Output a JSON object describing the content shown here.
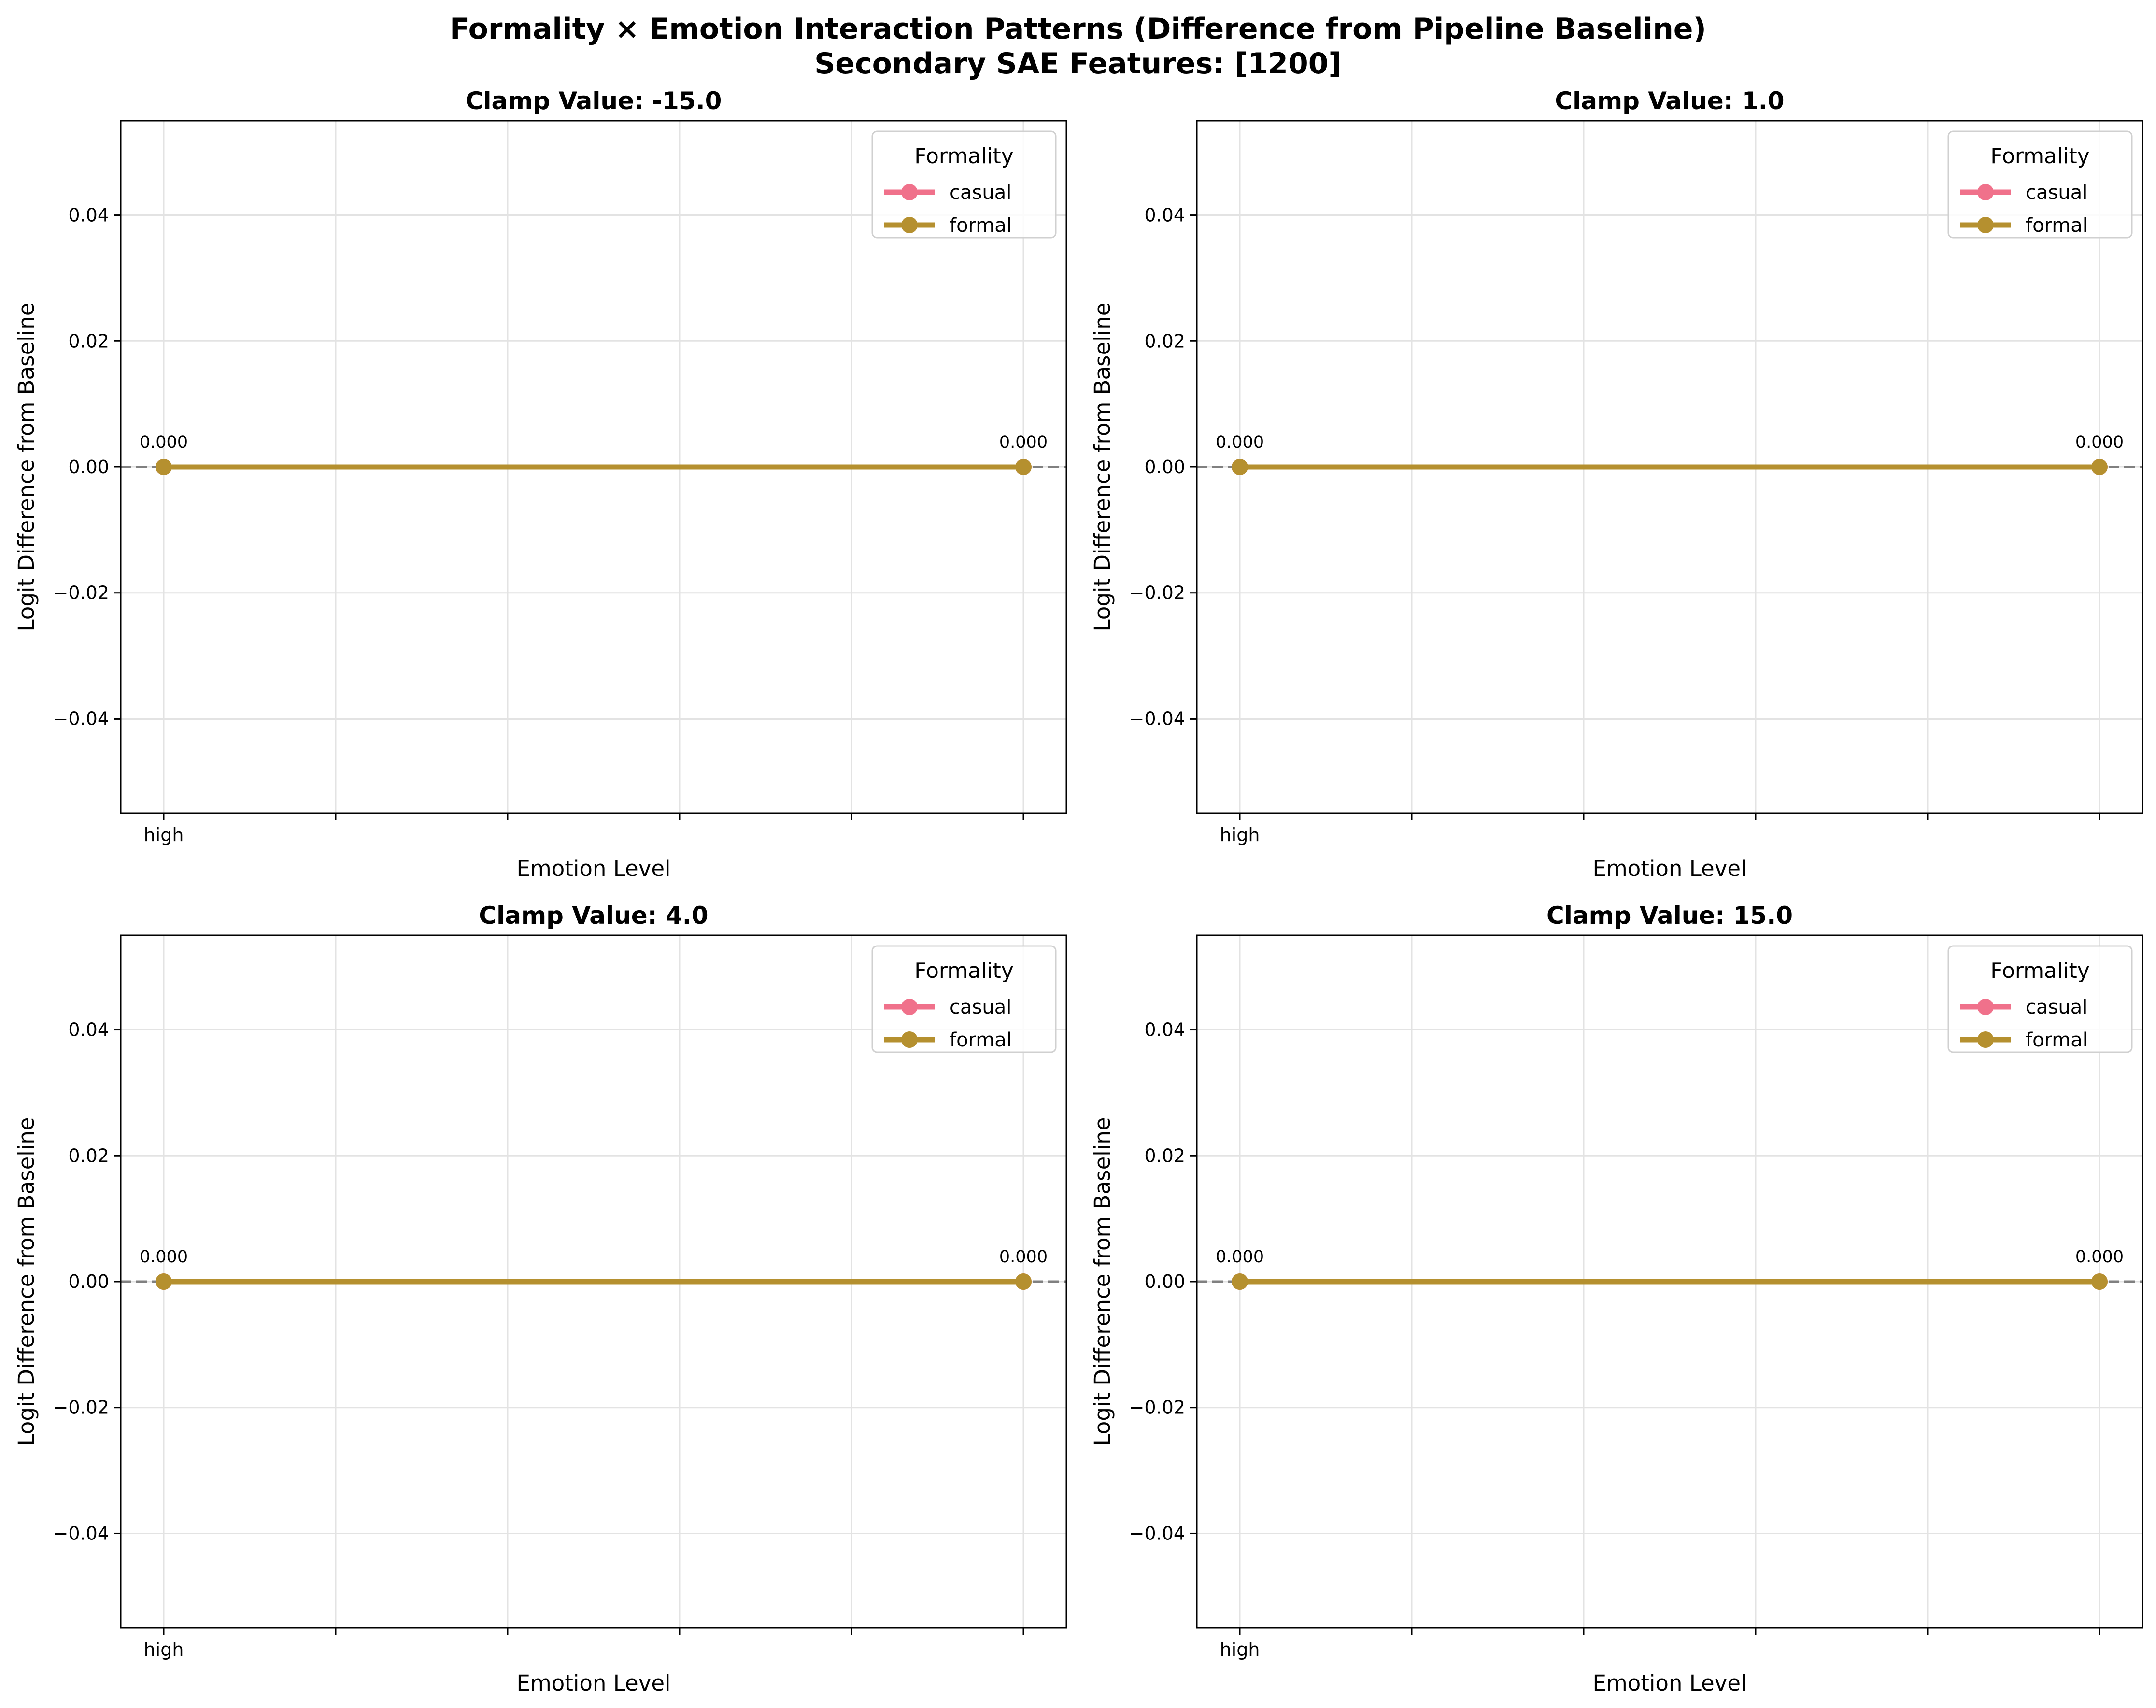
{
  "figure": {
    "title_line1": "Formality × Emotion Interaction Patterns (Difference from Pipeline Baseline)",
    "title_line2": "Secondary SAE Features: [1200]"
  },
  "colors": {
    "casual": "#f0718b",
    "formal": "#b5902f",
    "baseline": "#808080",
    "grid": "#e3e3e3"
  },
  "chart_data": [
    {
      "type": "line",
      "title": "Clamp Value: -15.0",
      "xlabel": "Emotion Level",
      "ylabel": "Logit Difference from Baseline",
      "x_ticks": [
        "high",
        "",
        "",
        "",
        "",
        ""
      ],
      "ylim": [
        -0.055,
        0.055
      ],
      "y_ticks": [
        -0.04,
        -0.02,
        0.0,
        0.02,
        0.04
      ],
      "y_tick_labels": [
        "−0.04",
        "−0.02",
        "0.00",
        "0.02",
        "0.04"
      ],
      "grid": true,
      "baseline": 0,
      "legend": {
        "title": "Formality",
        "position": "top-right"
      },
      "series": [
        {
          "name": "casual",
          "x": [
            0,
            5
          ],
          "values": [
            0.0,
            0.0
          ]
        },
        {
          "name": "formal",
          "x": [
            0,
            5
          ],
          "values": [
            0.0,
            0.0
          ]
        }
      ],
      "annotations": [
        {
          "x": 0,
          "y": 0.0,
          "text": "0.000"
        },
        {
          "x": 5,
          "y": 0.0,
          "text": "0.000"
        }
      ]
    },
    {
      "type": "line",
      "title": "Clamp Value: 1.0",
      "xlabel": "Emotion Level",
      "ylabel": "Logit Difference from Baseline",
      "x_ticks": [
        "high",
        "",
        "",
        "",
        "",
        ""
      ],
      "ylim": [
        -0.055,
        0.055
      ],
      "y_ticks": [
        -0.04,
        -0.02,
        0.0,
        0.02,
        0.04
      ],
      "y_tick_labels": [
        "−0.04",
        "−0.02",
        "0.00",
        "0.02",
        "0.04"
      ],
      "grid": true,
      "baseline": 0,
      "legend": {
        "title": "Formality",
        "position": "top-right"
      },
      "series": [
        {
          "name": "casual",
          "x": [
            0,
            5
          ],
          "values": [
            0.0,
            0.0
          ]
        },
        {
          "name": "formal",
          "x": [
            0,
            5
          ],
          "values": [
            0.0,
            0.0
          ]
        }
      ],
      "annotations": [
        {
          "x": 0,
          "y": 0.0,
          "text": "0.000"
        },
        {
          "x": 5,
          "y": 0.0,
          "text": "0.000"
        }
      ]
    },
    {
      "type": "line",
      "title": "Clamp Value: 4.0",
      "xlabel": "Emotion Level",
      "ylabel": "Logit Difference from Baseline",
      "x_ticks": [
        "high",
        "",
        "",
        "",
        "",
        ""
      ],
      "ylim": [
        -0.055,
        0.055
      ],
      "y_ticks": [
        -0.04,
        -0.02,
        0.0,
        0.02,
        0.04
      ],
      "y_tick_labels": [
        "−0.04",
        "−0.02",
        "0.00",
        "0.02",
        "0.04"
      ],
      "grid": true,
      "baseline": 0,
      "legend": {
        "title": "Formality",
        "position": "top-right"
      },
      "series": [
        {
          "name": "casual",
          "x": [
            0,
            5
          ],
          "values": [
            0.0,
            0.0
          ]
        },
        {
          "name": "formal",
          "x": [
            0,
            5
          ],
          "values": [
            0.0,
            0.0
          ]
        }
      ],
      "annotations": [
        {
          "x": 0,
          "y": 0.0,
          "text": "0.000"
        },
        {
          "x": 5,
          "y": 0.0,
          "text": "0.000"
        }
      ]
    },
    {
      "type": "line",
      "title": "Clamp Value: 15.0",
      "xlabel": "Emotion Level",
      "ylabel": "Logit Difference from Baseline",
      "x_ticks": [
        "high",
        "",
        "",
        "",
        "",
        ""
      ],
      "ylim": [
        -0.055,
        0.055
      ],
      "y_ticks": [
        -0.04,
        -0.02,
        0.0,
        0.02,
        0.04
      ],
      "y_tick_labels": [
        "−0.04",
        "−0.02",
        "0.00",
        "0.02",
        "0.04"
      ],
      "grid": true,
      "baseline": 0,
      "legend": {
        "title": "Formality",
        "position": "top-right"
      },
      "series": [
        {
          "name": "casual",
          "x": [
            0,
            5
          ],
          "values": [
            0.0,
            0.0
          ]
        },
        {
          "name": "formal",
          "x": [
            0,
            5
          ],
          "values": [
            0.0,
            0.0
          ]
        }
      ],
      "annotations": [
        {
          "x": 0,
          "y": 0.0,
          "text": "0.000"
        },
        {
          "x": 5,
          "y": 0.0,
          "text": "0.000"
        }
      ]
    }
  ]
}
